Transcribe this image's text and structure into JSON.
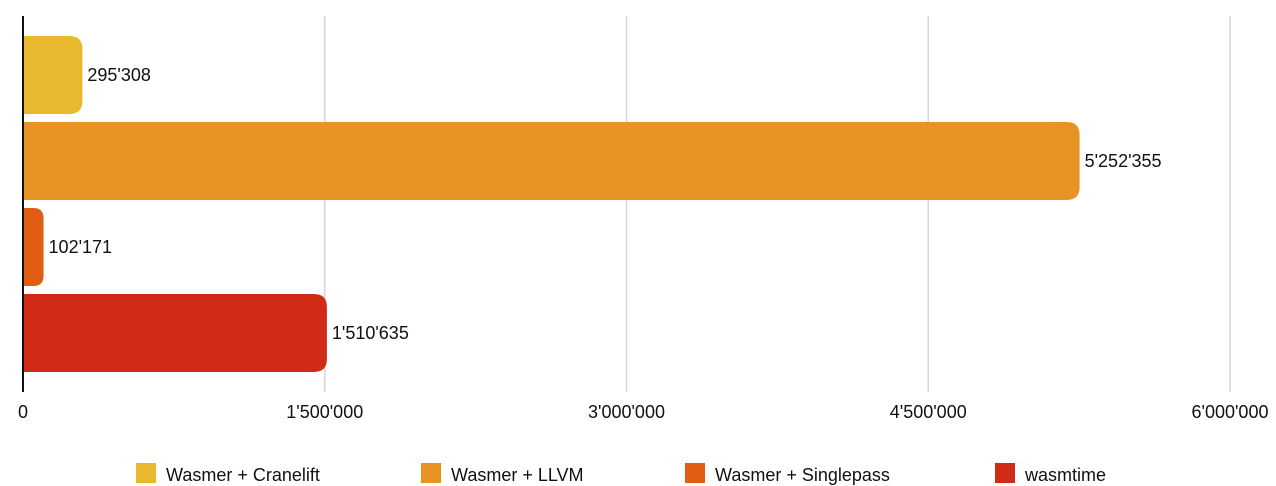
{
  "chart_data": {
    "type": "bar",
    "orientation": "horizontal",
    "series": [
      {
        "name": "Wasmer + Cranelift",
        "value": 295308,
        "label": "295'308",
        "color": "#E8B92F"
      },
      {
        "name": "Wasmer + LLVM",
        "value": 5252355,
        "label": "5'252'355",
        "color": "#E79425"
      },
      {
        "name": "Wasmer + Singlepass",
        "value": 102171,
        "label": "102'171",
        "color": "#E05D13"
      },
      {
        "name": "wasmtime",
        "value": 1510635,
        "label": "1'510'635",
        "color": "#CF2B15"
      }
    ],
    "xlim": [
      0,
      6000000
    ],
    "x_ticks": [
      {
        "value": 0,
        "label": "0"
      },
      {
        "value": 1500000,
        "label": "1'500'000"
      },
      {
        "value": 3000000,
        "label": "3'000'000"
      },
      {
        "value": 4500000,
        "label": "4'500'000"
      },
      {
        "value": 6000000,
        "label": "6'000'000"
      }
    ],
    "grid": true,
    "legend_position": "bottom",
    "title": "",
    "xlabel": "",
    "ylabel": ""
  }
}
